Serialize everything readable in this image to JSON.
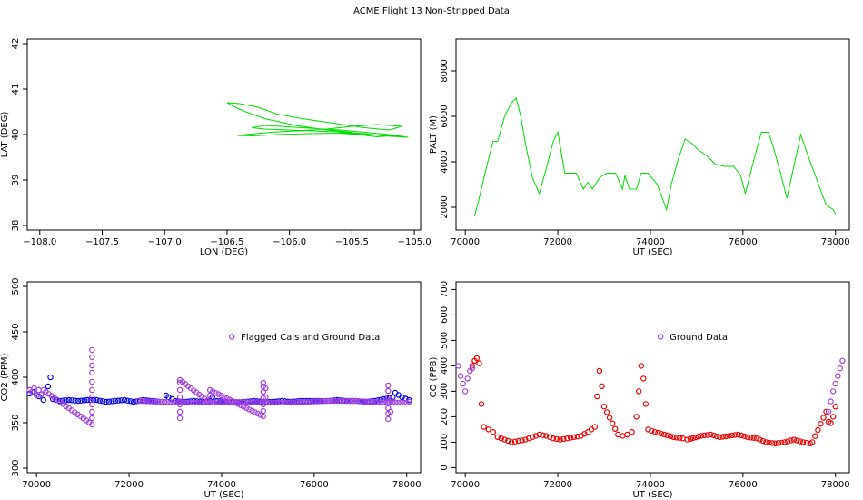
{
  "figure_title": "ACME Flight  13  Non-Stripped Data",
  "colors": {
    "track": "#00dd00",
    "altitude": "#00dd00",
    "co2_valid": "#0000ee",
    "co2_flagged": "#a040e0",
    "co_valid": "#ee0000",
    "co_flagged": "#a040e0"
  },
  "chart_data": [
    {
      "id": "track",
      "type": "line",
      "title": "",
      "xlabel": "LON (DEG)",
      "ylabel": "LAT (DEG)",
      "xlim": [
        -108.1,
        -104.95
      ],
      "ylim": [
        37.9,
        42.1
      ],
      "xticks": [
        -108.0,
        -107.5,
        -107.0,
        -106.5,
        -106.0,
        -105.5,
        -105.0
      ],
      "xtick_labels": [
        "−108.0",
        "−107.5",
        "−107.0",
        "−106.5",
        "−106.0",
        "−105.5",
        "−105.0"
      ],
      "yticks": [
        38,
        39,
        40,
        41,
        42
      ],
      "ytick_labels": [
        "38",
        "39",
        "40",
        "41",
        "42"
      ],
      "series": [
        {
          "x": [
            -105.5,
            -105.7,
            -105.95,
            -106.2,
            -106.35,
            -106.45,
            -106.5,
            -106.4,
            -106.25,
            -106.1,
            -105.9,
            -105.65,
            -105.4,
            -105.2,
            -105.1,
            -105.3,
            -105.5,
            -105.7,
            -105.95,
            -106.15,
            -106.35,
            -106.42,
            -106.3,
            -106.1,
            -105.85,
            -105.6,
            -105.45,
            -105.3,
            -105.15,
            -105.05,
            -105.25,
            -105.4,
            -105.55,
            -105.8,
            -106.0,
            -106.2,
            -106.3,
            -106.2,
            -105.9,
            -105.6,
            -105.4,
            -105.2,
            -105.08,
            -105.25,
            -105.45,
            -105.6
          ],
          "y": [
            40.05,
            40.1,
            40.2,
            40.35,
            40.5,
            40.62,
            40.7,
            40.68,
            40.6,
            40.45,
            40.35,
            40.25,
            40.15,
            40.1,
            40.18,
            40.22,
            40.18,
            40.12,
            40.08,
            40.05,
            40.0,
            39.98,
            39.97,
            40.0,
            40.02,
            40.03,
            40.0,
            39.95,
            39.98,
            39.94,
            39.97,
            40.02,
            40.05,
            40.08,
            40.1,
            40.12,
            40.15,
            40.2,
            40.15,
            40.1,
            40.05,
            40.0,
            39.95,
            39.98,
            40.02,
            40.04
          ]
        }
      ]
    },
    {
      "id": "altitude",
      "type": "line",
      "title": "",
      "xlabel": "UT (SEC)",
      "ylabel": "PALT (M)",
      "xlim": [
        69800,
        78300
      ],
      "ylim": [
        1000,
        9400
      ],
      "xticks": [
        70000,
        72000,
        74000,
        76000,
        78000
      ],
      "xtick_labels": [
        "70000",
        "72000",
        "74000",
        "76000",
        "78000"
      ],
      "yticks": [
        2000,
        4000,
        6000,
        8000
      ],
      "ytick_labels": [
        "2000",
        "4000",
        "6000",
        "8000"
      ],
      "series": [
        {
          "x": [
            70200,
            70300,
            70450,
            70600,
            70700,
            70850,
            71000,
            71100,
            71200,
            71300,
            71450,
            71600,
            71750,
            71900,
            72000,
            72150,
            72250,
            72400,
            72550,
            72650,
            72750,
            72900,
            73050,
            73250,
            73400,
            73450,
            73550,
            73700,
            73800,
            73950,
            74150,
            74350,
            74450,
            74600,
            74750,
            74900,
            75050,
            75200,
            75400,
            75600,
            75800,
            75950,
            76050,
            76250,
            76400,
            76550,
            76650,
            76800,
            76950,
            77100,
            77250,
            77400,
            77600,
            77800,
            77950,
            78000
          ],
          "y": [
            1600,
            2400,
            3700,
            4900,
            4900,
            6000,
            6600,
            6800,
            6000,
            4800,
            3300,
            2600,
            3700,
            4900,
            5300,
            3500,
            3500,
            3500,
            2800,
            3100,
            2800,
            3300,
            3500,
            3500,
            2800,
            3400,
            2800,
            2800,
            3500,
            3500,
            3000,
            1900,
            3000,
            4100,
            5000,
            4800,
            4500,
            4300,
            3900,
            3800,
            3800,
            3400,
            2600,
            4200,
            5300,
            5300,
            4700,
            3600,
            2400,
            3800,
            5200,
            4300,
            3200,
            2100,
            1900,
            1700
          ]
        }
      ]
    },
    {
      "id": "co2",
      "type": "scatter",
      "title": "",
      "xlabel": "UT (SEC)",
      "ylabel": "CO2 (PPM)",
      "xlim": [
        69800,
        78300
      ],
      "ylim": [
        295,
        505
      ],
      "xticks": [
        70000,
        72000,
        74000,
        76000,
        78000
      ],
      "xtick_labels": [
        "70000",
        "72000",
        "74000",
        "76000",
        "78000"
      ],
      "yticks": [
        300,
        350,
        400,
        450,
        500
      ],
      "ytick_labels": [
        "300",
        "350",
        "400",
        "450",
        "500"
      ],
      "legend": {
        "label": "Flagged Cals and Ground Data",
        "placement": "upper-middle"
      },
      "series": [
        {
          "name": "valid",
          "x": [
            69850,
            69950,
            70050,
            70150,
            70250,
            70300,
            70350,
            70500,
            70700,
            70900,
            71100,
            71300,
            71500,
            71700,
            71900,
            72100,
            72300,
            72500,
            72700,
            72800,
            72850,
            73000,
            73200,
            73400,
            73600,
            73750,
            73800,
            73900,
            74100,
            74300,
            74500,
            74700,
            74900,
            75100,
            75300,
            75500,
            75700,
            75900,
            76100,
            76300,
            76500,
            76700,
            76900,
            77100,
            77300,
            77500,
            77700,
            77750,
            77900,
            78050
          ],
          "y": [
            382,
            384,
            379,
            375,
            390,
            400,
            376,
            374,
            375,
            374,
            375,
            375,
            373,
            374,
            375,
            373,
            375,
            374,
            373,
            380,
            378,
            374,
            373,
            374,
            373,
            374,
            378,
            374,
            373,
            372,
            373,
            374,
            373,
            373,
            374,
            373,
            374,
            374,
            374,
            374,
            375,
            374,
            374,
            373,
            374,
            376,
            378,
            383,
            378,
            375
          ]
        },
        {
          "name": "flagged",
          "x": [
            69850,
            69900,
            69950,
            70000,
            70050,
            70100,
            70150,
            70200,
            71200,
            71200,
            71200,
            71200,
            71200,
            71200,
            71200,
            71200,
            71200,
            71200,
            71200,
            73100,
            73100,
            73100,
            73100,
            73100,
            73100,
            73100,
            73750,
            73750,
            73750,
            74900,
            74900,
            74900,
            74900,
            74900,
            74900,
            74900,
            74950,
            74950,
            77600,
            77600,
            77600,
            77600,
            77600,
            77600,
            77600,
            77650,
            77650,
            72200,
            72700,
            73400,
            74200,
            75300,
            75800,
            76300,
            76900,
            77200,
            78000,
            78050
          ],
          "y": [
            386,
            384,
            388,
            380,
            386,
            381,
            386,
            384,
            348,
            355,
            362,
            370,
            378,
            386,
            395,
            405,
            413,
            422,
            430,
            355,
            362,
            370,
            378,
            386,
            394,
            397,
            372,
            380,
            386,
            357,
            363,
            370,
            377,
            384,
            390,
            394,
            388,
            378,
            354,
            360,
            366,
            372,
            378,
            385,
            391,
            375,
            362,
            374,
            373,
            372,
            373,
            372,
            373,
            374,
            374,
            373,
            372,
            373
          ]
        }
      ]
    },
    {
      "id": "co",
      "type": "scatter",
      "title": "",
      "xlabel": "UT (SEC)",
      "ylabel": "CO (PPB)",
      "xlim": [
        69800,
        78300
      ],
      "ylim": [
        -20,
        730
      ],
      "xticks": [
        70000,
        72000,
        74000,
        76000,
        78000
      ],
      "xtick_labels": [
        "70000",
        "72000",
        "74000",
        "76000",
        "78000"
      ],
      "yticks": [
        0,
        100,
        200,
        300,
        400,
        500,
        600,
        700
      ],
      "ytick_labels": [
        "0",
        "100",
        "200",
        "300",
        "400",
        "500",
        "600",
        "700"
      ],
      "legend": {
        "label": "Ground Data",
        "placement": "upper-middle"
      },
      "series": [
        {
          "name": "valid",
          "x": [
            70150,
            70200,
            70250,
            70300,
            70350,
            70400,
            70500,
            70600,
            70700,
            70850,
            71000,
            71150,
            71300,
            71450,
            71600,
            71750,
            71900,
            72050,
            72200,
            72350,
            72500,
            72650,
            72800,
            72850,
            72900,
            72950,
            73000,
            73300,
            73400,
            73500,
            73600,
            73700,
            73750,
            73800,
            73850,
            73900,
            73950,
            74100,
            74300,
            74500,
            74700,
            74800,
            75100,
            75300,
            75500,
            75700,
            75900,
            76100,
            76300,
            76500,
            76700,
            76900,
            77100,
            77300,
            77450,
            77500,
            77800,
            77850,
            77900,
            77950,
            78000
          ],
          "y": [
            400,
            420,
            430,
            410,
            250,
            160,
            150,
            140,
            120,
            110,
            100,
            105,
            110,
            120,
            130,
            125,
            115,
            110,
            115,
            120,
            125,
            140,
            160,
            280,
            380,
            320,
            240,
            130,
            125,
            130,
            140,
            200,
            300,
            400,
            350,
            250,
            150,
            140,
            130,
            120,
            115,
            110,
            125,
            130,
            120,
            125,
            130,
            120,
            115,
            100,
            95,
            100,
            110,
            100,
            95,
            100,
            220,
            180,
            175,
            200,
            240
          ]
        },
        {
          "name": "flagged",
          "x": [
            69850,
            69900,
            69950,
            70000,
            70050,
            70100,
            70150,
            77850,
            77900,
            77950,
            78000,
            78050,
            78100,
            78150
          ],
          "y": [
            400,
            360,
            330,
            300,
            350,
            380,
            390,
            220,
            260,
            300,
            330,
            360,
            390,
            420
          ]
        }
      ]
    }
  ]
}
